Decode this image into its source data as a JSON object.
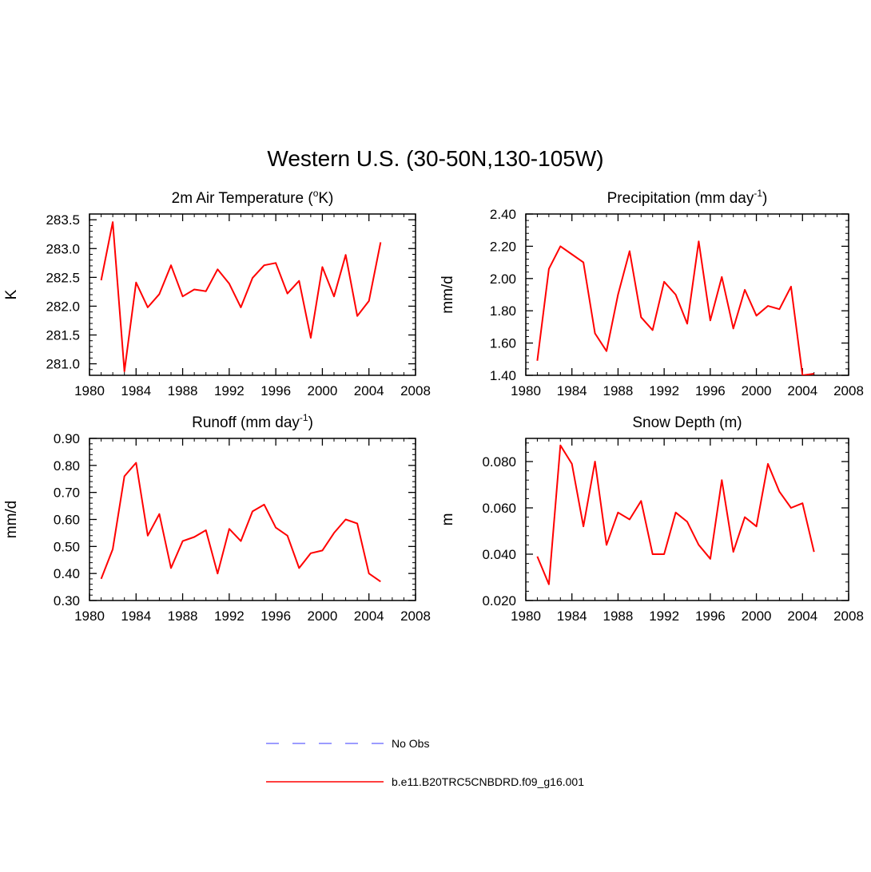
{
  "title": "Western U.S. (30-50N,130-105W)",
  "colors": {
    "model": "#ff0000",
    "obs": "#7b7bff",
    "axis": "#000000"
  },
  "legend": {
    "obs_label": "No Obs",
    "model_label": "b.e11.B20TRC5CNBDRD.f09_g16.001"
  },
  "chart_data": [
    {
      "type": "line",
      "title": "2m Air Temperature (",
      "title_sup": "o",
      "title_tail": "K)",
      "ylabel": "K",
      "x": [
        1981,
        1982,
        1983,
        1984,
        1985,
        1986,
        1987,
        1988,
        1989,
        1990,
        1991,
        1992,
        1993,
        1994,
        1995,
        1996,
        1997,
        1998,
        1999,
        2000,
        2001,
        2002,
        2003,
        2004,
        2005
      ],
      "series": [
        {
          "values": [
            282.45,
            283.46,
            280.87,
            282.41,
            281.98,
            282.21,
            282.71,
            282.17,
            282.29,
            282.26,
            282.64,
            282.39,
            281.98,
            282.49,
            282.71,
            282.75,
            282.22,
            282.44,
            281.45,
            282.68,
            282.17,
            282.89,
            281.83,
            282.09,
            283.11
          ]
        }
      ],
      "xlim": [
        1980,
        2008
      ],
      "ylim": [
        280.8,
        283.6
      ],
      "xticks": [
        1980,
        1984,
        1988,
        1992,
        1996,
        2000,
        2004,
        2008
      ],
      "yticks": [
        281.0,
        281.5,
        282.0,
        282.5,
        283.0,
        283.5
      ],
      "ytick_labels": [
        "281.0",
        "281.5",
        "282.0",
        "282.5",
        "283.0",
        "283.5"
      ],
      "grid": false
    },
    {
      "type": "line",
      "title": "Precipitation (mm day",
      "title_sup": "-1",
      "title_tail": ")",
      "ylabel": "mm/d",
      "x": [
        1981,
        1982,
        1983,
        1984,
        1985,
        1986,
        1987,
        1988,
        1989,
        1990,
        1991,
        1992,
        1993,
        1994,
        1995,
        1996,
        1997,
        1998,
        1999,
        2000,
        2001,
        2002,
        2003,
        2004,
        2005
      ],
      "series": [
        {
          "values": [
            1.49,
            2.06,
            2.2,
            2.15,
            2.1,
            1.66,
            1.55,
            1.9,
            2.17,
            1.76,
            1.68,
            1.98,
            1.9,
            1.72,
            2.23,
            1.74,
            2.01,
            1.69,
            1.93,
            1.77,
            1.83,
            1.81,
            1.95,
            1.4,
            1.41
          ]
        }
      ],
      "xlim": [
        1980,
        2008
      ],
      "ylim": [
        1.4,
        2.4
      ],
      "xticks": [
        1980,
        1984,
        1988,
        1992,
        1996,
        2000,
        2004,
        2008
      ],
      "yticks": [
        1.4,
        1.6,
        1.8,
        2.0,
        2.2,
        2.4
      ],
      "ytick_labels": [
        "1.40",
        "1.60",
        "1.80",
        "2.00",
        "2.20",
        "2.40"
      ],
      "grid": false
    },
    {
      "type": "line",
      "title": "Runoff (mm day",
      "title_sup": "-1",
      "title_tail": ")",
      "ylabel": "mm/d",
      "x": [
        1981,
        1982,
        1983,
        1984,
        1985,
        1986,
        1987,
        1988,
        1989,
        1990,
        1991,
        1992,
        1993,
        1994,
        1995,
        1996,
        1997,
        1998,
        1999,
        2000,
        2001,
        2002,
        2003,
        2004,
        2005
      ],
      "series": [
        {
          "values": [
            0.38,
            0.49,
            0.76,
            0.81,
            0.54,
            0.62,
            0.42,
            0.52,
            0.535,
            0.56,
            0.4,
            0.565,
            0.52,
            0.63,
            0.655,
            0.57,
            0.54,
            0.42,
            0.475,
            0.485,
            0.55,
            0.6,
            0.585,
            0.4,
            0.37
          ]
        }
      ],
      "xlim": [
        1980,
        2008
      ],
      "ylim": [
        0.3,
        0.9
      ],
      "xticks": [
        1980,
        1984,
        1988,
        1992,
        1996,
        2000,
        2004,
        2008
      ],
      "yticks": [
        0.3,
        0.4,
        0.5,
        0.6,
        0.7,
        0.8,
        0.9
      ],
      "ytick_labels": [
        "0.30",
        "0.40",
        "0.50",
        "0.60",
        "0.70",
        "0.80",
        "0.90"
      ],
      "grid": false
    },
    {
      "type": "line",
      "title": "Snow Depth (m)",
      "title_sup": "",
      "title_tail": "",
      "ylabel": "m",
      "x": [
        1981,
        1982,
        1983,
        1984,
        1985,
        1986,
        1987,
        1988,
        1989,
        1990,
        1991,
        1992,
        1993,
        1994,
        1995,
        1996,
        1997,
        1998,
        1999,
        2000,
        2001,
        2002,
        2003,
        2004,
        2005
      ],
      "series": [
        {
          "values": [
            0.039,
            0.027,
            0.087,
            0.079,
            0.052,
            0.08,
            0.044,
            0.058,
            0.055,
            0.063,
            0.04,
            0.04,
            0.058,
            0.054,
            0.044,
            0.038,
            0.072,
            0.041,
            0.056,
            0.052,
            0.079,
            0.067,
            0.06,
            0.062,
            0.041
          ]
        }
      ],
      "xlim": [
        1980,
        2008
      ],
      "ylim": [
        0.02,
        0.09
      ],
      "xticks": [
        1980,
        1984,
        1988,
        1992,
        1996,
        2000,
        2004,
        2008
      ],
      "yticks": [
        0.02,
        0.04,
        0.06,
        0.08
      ],
      "ytick_labels": [
        "0.020",
        "0.040",
        "0.060",
        "0.080"
      ],
      "grid": false
    }
  ]
}
